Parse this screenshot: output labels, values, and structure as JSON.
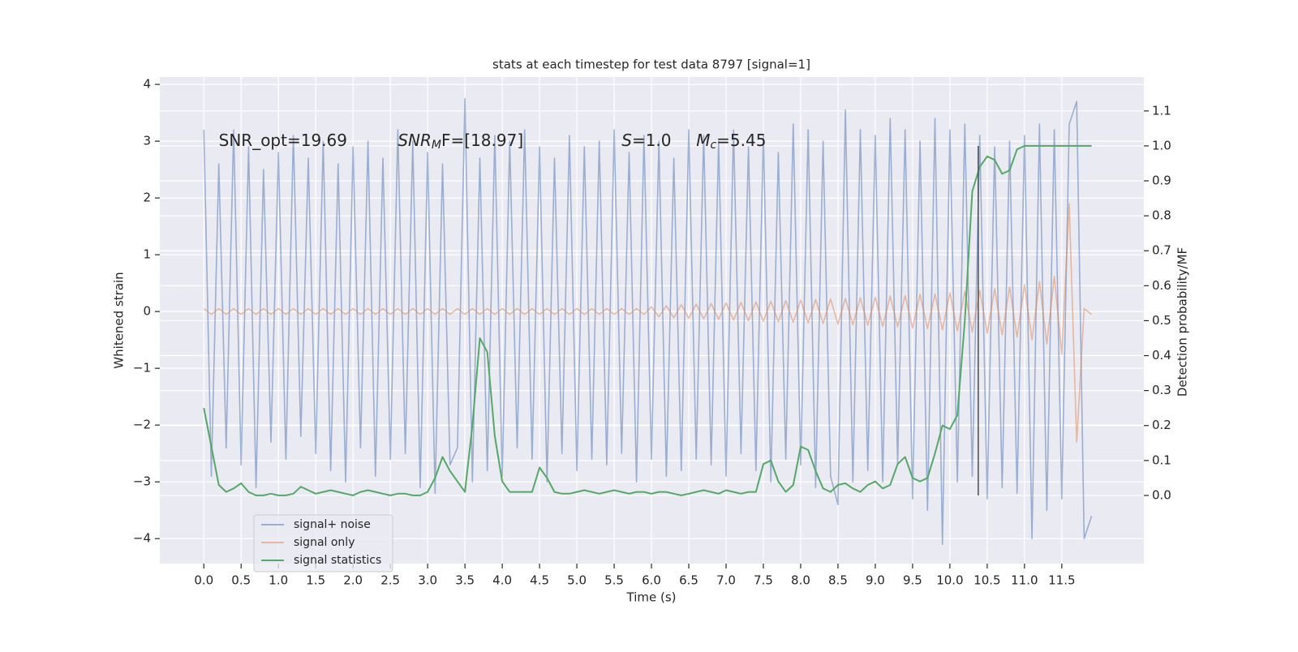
{
  "chart_data": {
    "type": "line",
    "title": "stats at each timestep for test data 8797 [signal=1]",
    "xlabel": "Time (s)",
    "ylabel": "Whitened strain",
    "y2label": "Detection probability/MF",
    "background": "#eaeaf2",
    "grid": true,
    "legend": "lower left",
    "xlim": [
      -0.59,
      12.6
    ],
    "ylim": [
      -4.44,
      4.13
    ],
    "y2lim": [
      -0.195,
      1.197
    ],
    "xticks": [
      {
        "value": 0,
        "label": "0.0"
      },
      {
        "value": 0.5,
        "label": "0.5"
      },
      {
        "value": 1,
        "label": "1.0"
      },
      {
        "value": 1.5,
        "label": "1.5"
      },
      {
        "value": 2,
        "label": "2.0"
      },
      {
        "value": 2.5,
        "label": "2.5"
      },
      {
        "value": 3,
        "label": "3.0"
      },
      {
        "value": 3.5,
        "label": "3.5"
      },
      {
        "value": 4,
        "label": "4.0"
      },
      {
        "value": 4.5,
        "label": "4.5"
      },
      {
        "value": 5,
        "label": "5.0"
      },
      {
        "value": 5.5,
        "label": "5.5"
      },
      {
        "value": 6,
        "label": "6.0"
      },
      {
        "value": 6.5,
        "label": "6.5"
      },
      {
        "value": 7,
        "label": "7.0"
      },
      {
        "value": 7.5,
        "label": "7.5"
      },
      {
        "value": 8,
        "label": "8.0"
      },
      {
        "value": 8.5,
        "label": "8.5"
      },
      {
        "value": 9,
        "label": "9.0"
      },
      {
        "value": 9.5,
        "label": "9.5"
      },
      {
        "value": 10,
        "label": "10.0"
      },
      {
        "value": 10.5,
        "label": "10.5"
      },
      {
        "value": 11,
        "label": "11.0"
      },
      {
        "value": 11.5,
        "label": "11.5"
      }
    ],
    "yticks": [
      {
        "value": -4,
        "label": "−4"
      },
      {
        "value": -3,
        "label": "−3"
      },
      {
        "value": -2,
        "label": "−2"
      },
      {
        "value": -1,
        "label": "−1"
      },
      0,
      1,
      2,
      3,
      4
    ],
    "y2ticks": [
      {
        "value": 0,
        "label": "0.0"
      },
      {
        "value": 0.1,
        "label": "0.1"
      },
      {
        "value": 0.2,
        "label": "0.2"
      },
      {
        "value": 0.3,
        "label": "0.3"
      },
      {
        "value": 0.4,
        "label": "0.4"
      },
      {
        "value": 0.5,
        "label": "0.5"
      },
      {
        "value": 0.6,
        "label": "0.6"
      },
      {
        "value": 0.7,
        "label": "0.7"
      },
      {
        "value": 0.8,
        "label": "0.8"
      },
      {
        "value": 0.9,
        "label": "0.9"
      },
      {
        "value": 1,
        "label": "1.0"
      },
      {
        "value": 1.1,
        "label": "1.1"
      }
    ],
    "x": [
      0,
      0.1,
      0.2,
      0.3,
      0.4,
      0.5,
      0.6,
      0.7,
      0.8,
      0.9,
      1,
      1.1,
      1.2,
      1.3,
      1.4,
      1.5,
      1.6,
      1.7,
      1.8,
      1.9,
      2,
      2.1,
      2.2,
      2.3,
      2.4,
      2.5,
      2.6,
      2.7,
      2.8,
      2.9,
      3,
      3.1,
      3.2,
      3.3,
      3.4,
      3.5,
      3.6,
      3.7,
      3.8,
      3.9,
      4,
      4.1,
      4.2,
      4.3,
      4.4,
      4.5,
      4.6,
      4.7,
      4.8,
      4.9,
      5,
      5.1,
      5.2,
      5.3,
      5.4,
      5.5,
      5.6,
      5.7,
      5.8,
      5.9,
      6,
      6.1,
      6.2,
      6.3,
      6.4,
      6.5,
      6.6,
      6.7,
      6.8,
      6.9,
      7,
      7.1,
      7.2,
      7.3,
      7.4,
      7.5,
      7.6,
      7.7,
      7.8,
      7.9,
      8,
      8.1,
      8.2,
      8.3,
      8.4,
      8.5,
      8.6,
      8.7,
      8.8,
      8.9,
      9,
      9.1,
      9.2,
      9.3,
      9.4,
      9.5,
      9.6,
      9.7,
      9.8,
      9.9,
      10,
      10.1,
      10.2,
      10.3,
      10.4,
      10.5,
      10.6,
      10.7,
      10.8,
      10.9,
      11,
      11.1,
      11.2,
      11.3,
      11.4,
      11.5,
      11.6,
      11.7,
      11.8,
      11.9
    ],
    "series": [
      {
        "name": "signal+ noise",
        "color": "#4c72b0",
        "opacity": 0.5,
        "values": [
          3.2,
          -2.9,
          2.6,
          -2.4,
          3.2,
          -2.7,
          2.9,
          -3.1,
          2.5,
          -2.3,
          2.8,
          -2.6,
          3.1,
          -2.2,
          2.7,
          -2.5,
          3.0,
          -2.8,
          2.6,
          -3.0,
          2.9,
          -2.4,
          3.0,
          -2.9,
          2.7,
          -2.6,
          3.2,
          -2.5,
          3.0,
          -3.1,
          2.8,
          -3.2,
          2.6,
          -2.7,
          -2.4,
          3.75,
          -3.0,
          2.7,
          -2.8,
          3.1,
          -2.9,
          3.0,
          -2.4,
          3.2,
          -2.6,
          2.9,
          -3.0,
          2.7,
          -2.5,
          3.1,
          -2.8,
          2.9,
          -2.6,
          3.0,
          -2.7,
          3.2,
          -2.5,
          2.8,
          -3.0,
          3.1,
          -2.6,
          3.0,
          -2.9,
          2.7,
          -2.8,
          3.2,
          -2.6,
          3.1,
          -2.7,
          3.0,
          -2.9,
          3.2,
          -2.5,
          2.9,
          -2.8,
          3.1,
          -3.0,
          2.8,
          -2.6,
          3.3,
          -2.7,
          3.2,
          -3.1,
          3.0,
          -2.9,
          -3.4,
          3.55,
          -3.0,
          3.2,
          -2.8,
          3.1,
          -3.0,
          3.4,
          -2.7,
          3.2,
          -3.3,
          3.0,
          -3.5,
          3.4,
          -4.1,
          3.2,
          -3.0,
          3.3,
          -2.9,
          3.1,
          -3.3,
          2.9,
          -3.1,
          3.0,
          -3.2,
          3.1,
          -4.0,
          3.3,
          -3.5,
          3.2,
          -3.3,
          3.3,
          3.7,
          -4.0,
          -3.6
        ]
      },
      {
        "name": "signal only",
        "color": "#dd8452",
        "opacity": 0.5,
        "values": [
          0.05,
          -0.05,
          0.05,
          -0.05,
          0.05,
          -0.05,
          0.05,
          -0.05,
          0.05,
          -0.05,
          0.05,
          -0.05,
          0.05,
          -0.05,
          0.05,
          -0.05,
          0.05,
          -0.05,
          0.05,
          -0.05,
          0.05,
          -0.05,
          0.05,
          -0.05,
          0.05,
          -0.05,
          0.05,
          -0.05,
          0.05,
          -0.05,
          0.05,
          -0.05,
          0.05,
          -0.05,
          0.05,
          -0.05,
          0.05,
          -0.05,
          0.05,
          -0.05,
          0.05,
          -0.05,
          0.05,
          -0.05,
          0.05,
          -0.05,
          0.05,
          -0.05,
          0.05,
          -0.05,
          0.05,
          -0.05,
          0.05,
          -0.05,
          0.05,
          -0.05,
          0.05,
          -0.05,
          0.05,
          -0.05,
          0.08,
          -0.09,
          0.1,
          -0.11,
          0.12,
          -0.12,
          0.13,
          -0.13,
          0.14,
          -0.14,
          0.15,
          -0.15,
          0.16,
          -0.16,
          0.17,
          -0.17,
          0.18,
          -0.18,
          0.19,
          -0.19,
          0.2,
          -0.2,
          0.21,
          -0.21,
          0.22,
          -0.22,
          0.23,
          -0.23,
          0.24,
          -0.24,
          0.25,
          -0.26,
          0.27,
          -0.27,
          0.28,
          -0.29,
          0.3,
          -0.3,
          0.31,
          -0.32,
          0.33,
          -0.34,
          0.35,
          -0.36,
          0.37,
          -0.38,
          0.4,
          -0.41,
          0.43,
          -0.45,
          0.47,
          -0.5,
          0.53,
          -0.57,
          0.62,
          -0.75,
          1.9,
          -2.3,
          0.05,
          -0.05
        ]
      },
      {
        "name": "signal statistics",
        "color": "#55a868",
        "opacity": 1,
        "axis": "y2",
        "values": [
          0.25,
          0.14,
          0.03,
          0.01,
          0.02,
          0.035,
          0.01,
          0.0,
          0.0,
          0.005,
          0.0,
          0.0,
          0.005,
          0.025,
          0.015,
          0.005,
          0.01,
          0.015,
          0.01,
          0.005,
          0.0,
          0.01,
          0.015,
          0.01,
          0.005,
          0.0,
          0.005,
          0.005,
          0.0,
          0.0,
          0.01,
          0.05,
          0.11,
          0.07,
          0.04,
          0.01,
          0.2,
          0.45,
          0.41,
          0.17,
          0.04,
          0.01,
          0.01,
          0.01,
          0.01,
          0.08,
          0.05,
          0.01,
          0.005,
          0.005,
          0.01,
          0.015,
          0.01,
          0.005,
          0.01,
          0.015,
          0.01,
          0.005,
          0.01,
          0.01,
          0.005,
          0.01,
          0.01,
          0.005,
          0.0,
          0.005,
          0.01,
          0.015,
          0.01,
          0.005,
          0.015,
          0.01,
          0.005,
          0.01,
          0.01,
          0.09,
          0.1,
          0.04,
          0.01,
          0.03,
          0.14,
          0.13,
          0.07,
          0.02,
          0.01,
          0.03,
          0.035,
          0.02,
          0.01,
          0.03,
          0.04,
          0.02,
          0.03,
          0.09,
          0.11,
          0.05,
          0.04,
          0.05,
          0.12,
          0.2,
          0.19,
          0.23,
          0.5,
          0.87,
          0.94,
          0.97,
          0.96,
          0.92,
          0.93,
          0.99,
          1.0,
          1.0,
          1.0,
          1.0,
          1.0,
          1.0,
          1.0,
          1.0,
          1.0,
          1.0
        ]
      }
    ],
    "vline": {
      "x": 10.38,
      "y2range": [
        0,
        1
      ],
      "color": "#555555"
    },
    "annotations": [
      {
        "text": "SNR_opt=19.69",
        "x": 0.2,
        "y": 3.0
      },
      {
        "text": "SNR",
        "sub": "M",
        "after": "F=[18.97]",
        "x": 2.6,
        "y": 3.0,
        "math": true
      },
      {
        "text": "S",
        "after": "=1.0",
        "x": 5.6,
        "y": 3.0,
        "math": true
      },
      {
        "text": "M",
        "sub": "c",
        "after": "=5.45",
        "x": 6.6,
        "y": 3.0,
        "math": true
      }
    ]
  }
}
